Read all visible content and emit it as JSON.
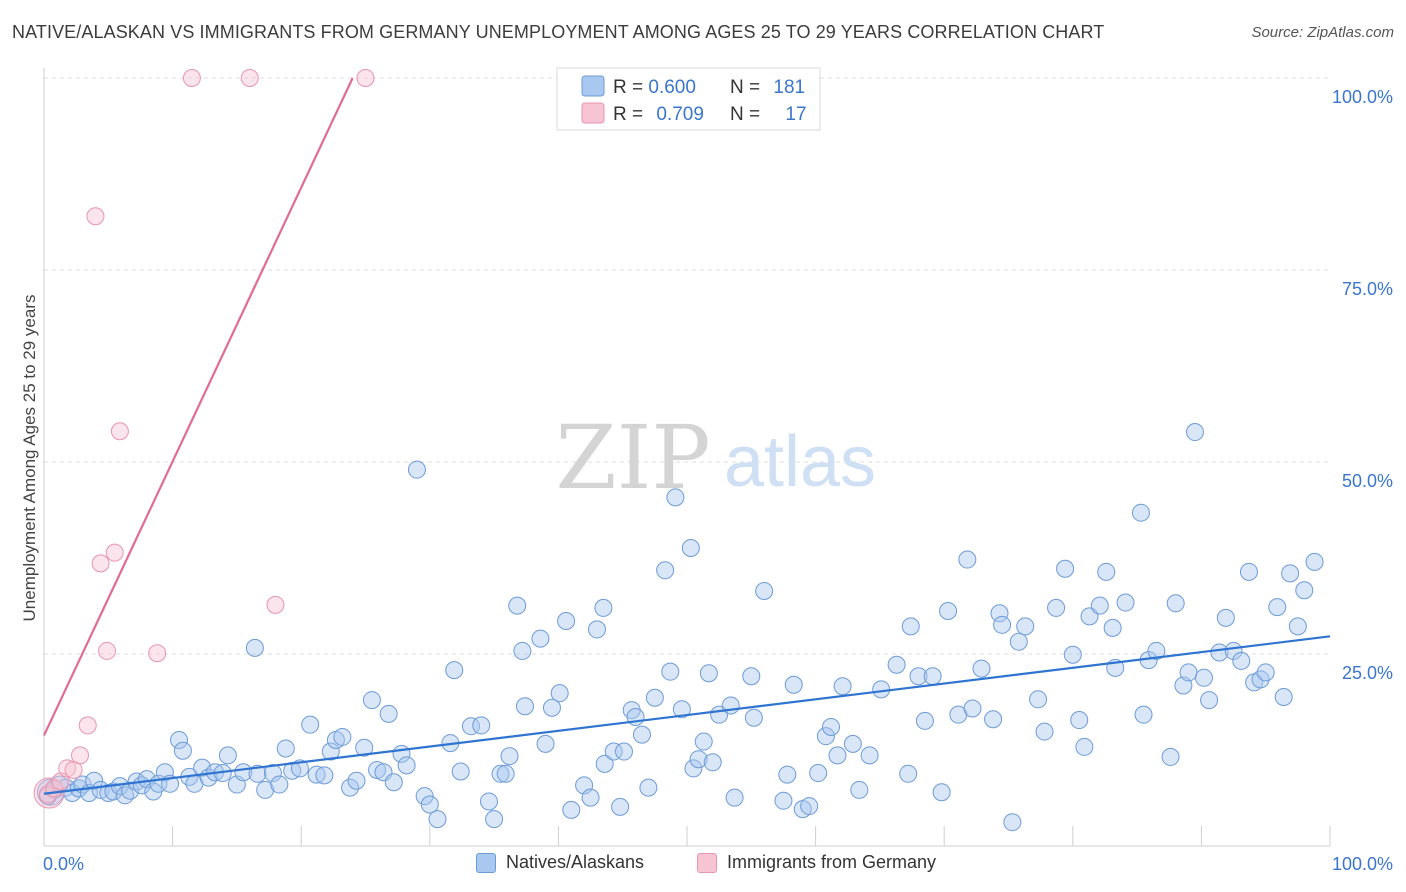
{
  "chart_data": {
    "type": "scatter",
    "title": "NATIVE/ALASKAN VS IMMIGRANTS FROM GERMANY UNEMPLOYMENT AMONG AGES 25 TO 29 YEARS CORRELATION CHART",
    "source": "Source: ZipAtlas.com",
    "watermark": {
      "zip": "ZIP",
      "atlas": "atlas"
    },
    "ylabel": "Unemployment Among Ages 25 to 29 years",
    "xlim": [
      0,
      100
    ],
    "ylim": [
      0,
      100
    ],
    "x_tick_labels": [
      "0.0%",
      "100.0%"
    ],
    "y_ticks": [
      25,
      50,
      75,
      100
    ],
    "y_tick_labels": [
      "25.0%",
      "50.0%",
      "75.0%",
      "100.0%"
    ],
    "legend": {
      "rows": [
        {
          "r_label": "R = ",
          "r_value": "0.600",
          "n_label": "N = ",
          "n_value": "181"
        },
        {
          "r_label": "R = ",
          "r_value": "0.709",
          "n_label": "N = ",
          "n_value": "17"
        }
      ]
    },
    "colors": {
      "natives_fill": "#a9c8f0",
      "natives_stroke": "#6d9bd8",
      "natives_line": "#2e74d0",
      "germany_fill": "#f6c4d2",
      "germany_stroke": "#e895b0",
      "germany_line": "#e06b96",
      "value_text": "#3a76cc"
    },
    "series": [
      {
        "name": "Natives/Alaskans",
        "trend": {
          "x": [
            0,
            100
          ],
          "y": [
            6.8,
            27.3
          ]
        },
        "points": [
          [
            0.3,
            6.5
          ],
          [
            0.8,
            7.3
          ],
          [
            1.2,
            8.0
          ],
          [
            1.7,
            7.6
          ],
          [
            2.2,
            6.9
          ],
          [
            2.7,
            7.5
          ],
          [
            3.0,
            8.0
          ],
          [
            3.5,
            6.9
          ],
          [
            3.9,
            8.5
          ],
          [
            4.4,
            7.3
          ],
          [
            5.0,
            6.9
          ],
          [
            5.4,
            7.1
          ],
          [
            5.9,
            7.8
          ],
          [
            6.3,
            6.6
          ],
          [
            6.7,
            7.2
          ],
          [
            7.2,
            8.4
          ],
          [
            7.6,
            7.9
          ],
          [
            8.0,
            8.7
          ],
          [
            8.5,
            7.1
          ],
          [
            8.9,
            8.1
          ],
          [
            9.4,
            9.6
          ],
          [
            9.8,
            8.1
          ],
          [
            10.5,
            13.8
          ],
          [
            10.8,
            12.4
          ],
          [
            11.3,
            9.0
          ],
          [
            11.7,
            8.1
          ],
          [
            12.3,
            10.2
          ],
          [
            12.8,
            8.9
          ],
          [
            13.3,
            9.6
          ],
          [
            13.9,
            9.5
          ],
          [
            14.3,
            11.8
          ],
          [
            15.0,
            8.0
          ],
          [
            15.5,
            9.6
          ],
          [
            16.4,
            25.8
          ],
          [
            16.6,
            9.4
          ],
          [
            17.2,
            7.3
          ],
          [
            17.8,
            9.5
          ],
          [
            18.3,
            8.0
          ],
          [
            18.8,
            12.7
          ],
          [
            19.3,
            9.8
          ],
          [
            19.9,
            10.1
          ],
          [
            20.7,
            15.8
          ],
          [
            21.2,
            9.3
          ],
          [
            21.8,
            9.2
          ],
          [
            22.3,
            12.3
          ],
          [
            22.7,
            13.8
          ],
          [
            23.2,
            14.2
          ],
          [
            23.8,
            7.6
          ],
          [
            24.3,
            8.5
          ],
          [
            24.9,
            12.8
          ],
          [
            25.5,
            19.0
          ],
          [
            25.9,
            9.9
          ],
          [
            26.4,
            9.6
          ],
          [
            26.8,
            17.2
          ],
          [
            27.2,
            8.3
          ],
          [
            27.8,
            12.0
          ],
          [
            28.2,
            10.5
          ],
          [
            29.0,
            49.0
          ],
          [
            29.6,
            6.5
          ],
          [
            30.0,
            5.4
          ],
          [
            30.6,
            3.5
          ],
          [
            31.6,
            13.4
          ],
          [
            31.9,
            22.9
          ],
          [
            32.4,
            9.7
          ],
          [
            33.2,
            15.6
          ],
          [
            34.0,
            15.7
          ],
          [
            34.6,
            5.8
          ],
          [
            35.0,
            3.5
          ],
          [
            35.5,
            9.4
          ],
          [
            35.9,
            9.4
          ],
          [
            36.2,
            11.7
          ],
          [
            36.8,
            31.3
          ],
          [
            37.2,
            25.4
          ],
          [
            37.4,
            18.2
          ],
          [
            38.6,
            27.0
          ],
          [
            39.0,
            13.3
          ],
          [
            39.5,
            18.0
          ],
          [
            40.1,
            19.9
          ],
          [
            40.6,
            29.3
          ],
          [
            41.0,
            4.7
          ],
          [
            42.0,
            7.9
          ],
          [
            42.5,
            6.3
          ],
          [
            43.0,
            28.2
          ],
          [
            43.5,
            31.0
          ],
          [
            43.6,
            10.7
          ],
          [
            44.3,
            12.3
          ],
          [
            44.8,
            5.1
          ],
          [
            45.1,
            12.3
          ],
          [
            45.7,
            17.7
          ],
          [
            46.0,
            16.8
          ],
          [
            46.5,
            14.5
          ],
          [
            47.0,
            7.6
          ],
          [
            47.5,
            19.3
          ],
          [
            48.3,
            35.9
          ],
          [
            48.7,
            22.7
          ],
          [
            49.1,
            45.4
          ],
          [
            49.6,
            17.8
          ],
          [
            50.3,
            38.8
          ],
          [
            50.5,
            10.1
          ],
          [
            50.9,
            11.3
          ],
          [
            51.3,
            13.6
          ],
          [
            51.7,
            22.5
          ],
          [
            52.0,
            10.9
          ],
          [
            52.5,
            17.1
          ],
          [
            53.4,
            18.3
          ],
          [
            53.7,
            6.3
          ],
          [
            55.0,
            22.1
          ],
          [
            55.2,
            16.7
          ],
          [
            56.0,
            33.2
          ],
          [
            57.5,
            5.9
          ],
          [
            57.8,
            9.3
          ],
          [
            58.3,
            21.0
          ],
          [
            59.0,
            4.8
          ],
          [
            59.5,
            5.2
          ],
          [
            60.2,
            9.5
          ],
          [
            60.8,
            14.3
          ],
          [
            61.2,
            15.5
          ],
          [
            61.7,
            11.8
          ],
          [
            62.1,
            20.8
          ],
          [
            62.9,
            13.3
          ],
          [
            63.4,
            7.3
          ],
          [
            64.2,
            11.8
          ],
          [
            65.1,
            20.4
          ],
          [
            66.3,
            23.6
          ],
          [
            67.2,
            9.4
          ],
          [
            67.4,
            28.6
          ],
          [
            68.0,
            22.1
          ],
          [
            68.5,
            16.3
          ],
          [
            69.1,
            22.1
          ],
          [
            69.8,
            7.0
          ],
          [
            70.3,
            30.6
          ],
          [
            71.1,
            17.1
          ],
          [
            71.8,
            37.3
          ],
          [
            72.2,
            17.9
          ],
          [
            72.9,
            23.1
          ],
          [
            73.8,
            16.5
          ],
          [
            74.3,
            30.3
          ],
          [
            74.5,
            28.8
          ],
          [
            75.3,
            3.1
          ],
          [
            75.8,
            26.6
          ],
          [
            76.3,
            28.6
          ],
          [
            77.3,
            19.1
          ],
          [
            77.8,
            14.9
          ],
          [
            78.7,
            31.0
          ],
          [
            79.4,
            36.1
          ],
          [
            80.0,
            24.9
          ],
          [
            80.5,
            16.4
          ],
          [
            80.9,
            12.9
          ],
          [
            81.3,
            29.9
          ],
          [
            82.1,
            31.3
          ],
          [
            82.6,
            35.7
          ],
          [
            83.1,
            28.4
          ],
          [
            83.3,
            23.2
          ],
          [
            84.1,
            31.7
          ],
          [
            85.3,
            43.4
          ],
          [
            85.5,
            17.1
          ],
          [
            85.9,
            24.2
          ],
          [
            86.5,
            25.4
          ],
          [
            87.6,
            11.6
          ],
          [
            88.0,
            31.6
          ],
          [
            88.6,
            20.9
          ],
          [
            89.0,
            22.6
          ],
          [
            89.5,
            53.9
          ],
          [
            90.2,
            21.9
          ],
          [
            90.6,
            19.0
          ],
          [
            91.4,
            25.2
          ],
          [
            91.9,
            29.7
          ],
          [
            92.5,
            25.4
          ],
          [
            93.1,
            24.1
          ],
          [
            93.7,
            35.7
          ],
          [
            94.1,
            21.3
          ],
          [
            94.6,
            21.7
          ],
          [
            95.0,
            22.6
          ],
          [
            95.9,
            31.1
          ],
          [
            96.4,
            19.4
          ],
          [
            96.9,
            35.5
          ],
          [
            97.5,
            28.6
          ],
          [
            98.0,
            33.3
          ],
          [
            98.8,
            37.0
          ]
        ]
      },
      {
        "name": "Immigrants from Germany",
        "trend": {
          "x": [
            0,
            24.0
          ],
          "y": [
            14.4,
            100
          ]
        },
        "points": [
          [
            0.3,
            6.7
          ],
          [
            0.8,
            7.5
          ],
          [
            1.3,
            8.4
          ],
          [
            1.8,
            10.1
          ],
          [
            2.3,
            9.9
          ],
          [
            2.8,
            11.8
          ],
          [
            3.4,
            15.7
          ],
          [
            4.0,
            82.0
          ],
          [
            4.4,
            36.8
          ],
          [
            4.9,
            25.4
          ],
          [
            5.5,
            38.2
          ],
          [
            5.9,
            54.0
          ],
          [
            8.8,
            25.1
          ],
          [
            11.5,
            100
          ],
          [
            16.0,
            100
          ],
          [
            18.0,
            31.4
          ],
          [
            25.0,
            100
          ]
        ]
      }
    ],
    "bottom_legend": [
      "Natives/Alaskans",
      "Immigrants from Germany"
    ]
  }
}
